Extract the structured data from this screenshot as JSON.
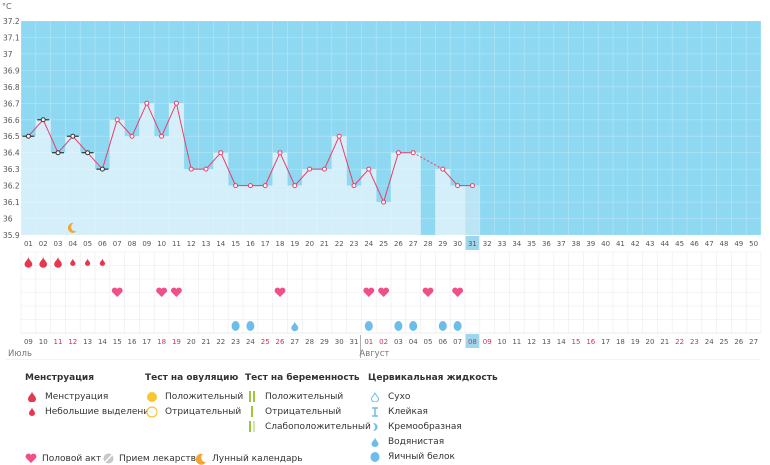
{
  "unit_label": "°C",
  "chart_data": {
    "type": "line",
    "ylim": [
      35.9,
      37.2
    ],
    "y_ticks": [
      35.9,
      36,
      36.1,
      36.2,
      36.3,
      36.4,
      36.5,
      36.6,
      36.7,
      36.8,
      36.9,
      37,
      37.1,
      37.2
    ],
    "x": [
      1,
      2,
      3,
      4,
      5,
      6,
      7,
      8,
      9,
      10,
      11,
      12,
      13,
      14,
      15,
      16,
      17,
      18,
      19,
      20,
      21,
      22,
      23,
      24,
      25,
      26,
      27,
      28,
      29,
      30,
      31,
      32,
      33,
      34,
      35,
      36,
      37,
      38,
      39,
      40,
      41,
      42,
      43,
      44,
      45,
      46,
      47,
      48,
      49,
      50
    ],
    "x_tick_labels": [
      "01",
      "02",
      "03",
      "04",
      "05",
      "06",
      "07",
      "08",
      "09",
      "10",
      "11",
      "12",
      "13",
      "14",
      "15",
      "16",
      "17",
      "18",
      "19",
      "20",
      "21",
      "22",
      "23",
      "24",
      "25",
      "26",
      "27",
      "28",
      "29",
      "30",
      "31",
      "32",
      "33",
      "34",
      "35",
      "36",
      "37",
      "38",
      "39",
      "40",
      "41",
      "42",
      "43",
      "44",
      "45",
      "46",
      "47",
      "48",
      "49",
      "50"
    ],
    "temperatures": [
      36.5,
      36.6,
      36.4,
      36.5,
      36.4,
      36.3,
      36.6,
      36.5,
      36.7,
      36.5,
      36.7,
      36.3,
      36.3,
      36.4,
      36.2,
      36.2,
      36.2,
      36.4,
      36.2,
      36.3,
      36.3,
      36.5,
      36.2,
      36.3,
      36.1,
      36.4,
      36.4,
      null,
      36.3,
      36.2,
      36.2
    ],
    "current_day": 31,
    "moon_day": 4,
    "menstruation_days": [
      1,
      2,
      3
    ],
    "spotting_days": [
      4,
      5,
      6
    ],
    "intercourse_days": [
      7,
      10,
      11,
      18,
      24,
      25,
      28,
      30
    ],
    "fluid_days": [
      15,
      16,
      24,
      26,
      27,
      29,
      30
    ],
    "fluid_drop_days": [
      19
    ],
    "dates_top": [
      "09",
      "10",
      "11",
      "12",
      "13",
      "14",
      "15",
      "16",
      "17",
      "18",
      "19",
      "20",
      "21",
      "22",
      "23",
      "24",
      "25",
      "26",
      "27",
      "28",
      "29",
      "30",
      "31",
      "01",
      "02",
      "03",
      "04",
      "05",
      "06",
      "07",
      "08",
      "09",
      "10",
      "11",
      "12",
      "13",
      "14",
      "15",
      "16",
      "17",
      "18",
      "19",
      "20",
      "21",
      "22",
      "23",
      "24",
      "25",
      "26",
      "27"
    ],
    "weekend_dates": [
      3,
      4,
      10,
      11,
      17,
      18,
      24,
      25,
      31,
      32,
      38,
      39,
      45,
      46
    ],
    "months": [
      {
        "label": "Июль",
        "day": 1
      },
      {
        "label": "Август",
        "day": 24
      }
    ]
  },
  "colors": {
    "blue": "#8fd8f2",
    "bar": "#d4effa",
    "line": "#e83e6b",
    "red": "#e8364f",
    "pink": "#f0508a",
    "drop": "#6cbde9",
    "moon": "#f4a533",
    "today": "#9ed6ee",
    "yellow": "#f7c631",
    "green": "#9bc83a"
  },
  "legend": {
    "menstruation": {
      "title": "Менструация",
      "items": [
        "Менструация",
        "Небольшие выделения"
      ]
    },
    "ovulation": {
      "title": "Тест на овуляцию",
      "items": [
        "Положительный",
        "Отрицательный"
      ]
    },
    "pregnancy": {
      "title": "Тест на беременность",
      "items": [
        "Положительный",
        "Отрицательный",
        "Слабоположительный"
      ]
    },
    "fluid": {
      "title": "Цервикальная жидкость",
      "items": [
        "Сухо",
        "Клейкая",
        "Кремообразная",
        "Водянистая",
        "Яичный белок"
      ]
    },
    "bottom": [
      "Половой акт",
      "Прием лекарств",
      "Лунный календарь"
    ]
  }
}
